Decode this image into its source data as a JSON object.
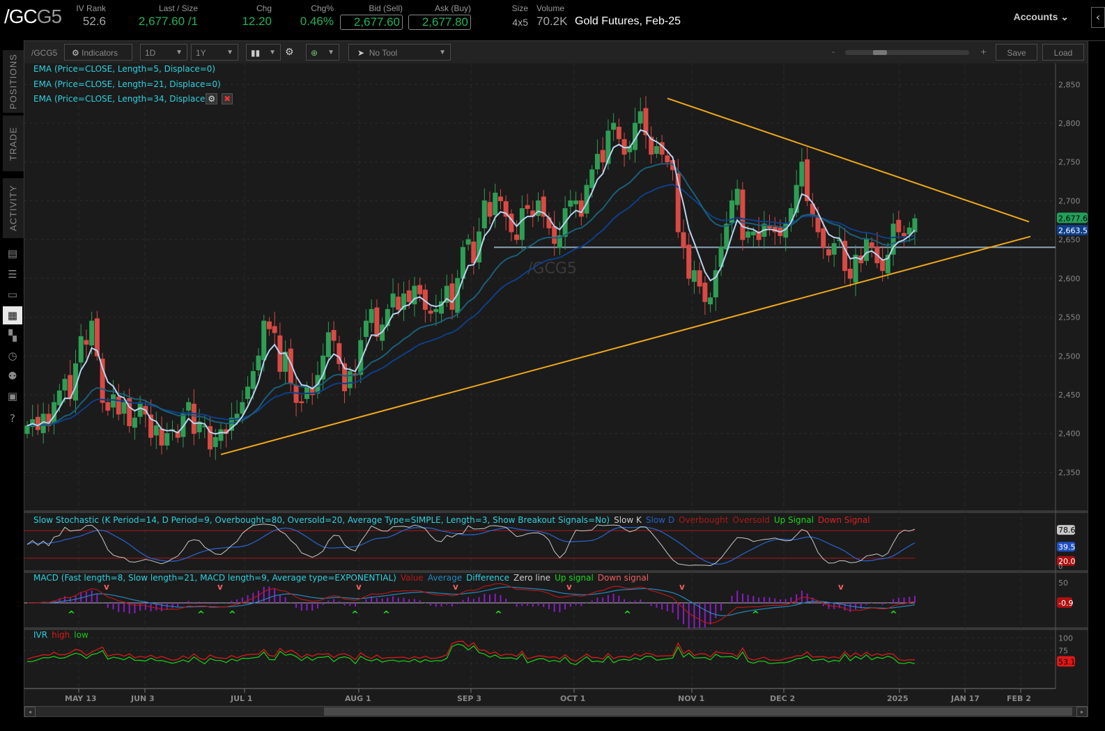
{
  "header": {
    "symbol_main": "/GC",
    "symbol_suffix": "G5",
    "iv_rank": {
      "label": "IV Rank",
      "value": "52.6"
    },
    "last_size": {
      "label": "Last / Size",
      "value": "2,677.60",
      "size": "/1"
    },
    "chg": {
      "label": "Chg",
      "value": "12.20"
    },
    "chg_pct": {
      "label": "Chg%",
      "value": "0.46%"
    },
    "bid": {
      "label": "Bid (Sell)",
      "value": "2,677.60"
    },
    "ask": {
      "label": "Ask (Buy)",
      "value": "2,677.80"
    },
    "size": {
      "label": "Size",
      "value": "4x5"
    },
    "volume": {
      "label": "Volume",
      "value": "70.2K"
    },
    "description": "Gold Futures, Feb-25",
    "accounts_label": "Accounts",
    "collapse_icon": "‹"
  },
  "left_rail": {
    "tabs": [
      "POSITIONS",
      "TRADE",
      "ACTIVITY"
    ],
    "icons": [
      "monitor-icon",
      "watchlist-icon",
      "tv-icon",
      "charts-icon",
      "grid-icon",
      "clock-icon",
      "people-icon",
      "calendar-icon",
      "help-icon"
    ]
  },
  "toolbar": {
    "symbol": "/GCG5",
    "indicators_label": "Indicators",
    "aggregation": "1D",
    "timeframe": "1Y",
    "style_icon": "candles-icon",
    "drawing_icon": "crosshair-icon",
    "tool_label": "No Tool",
    "zoom_minus": "-",
    "zoom_plus": "+",
    "save_label": "Save",
    "load_label": "Load"
  },
  "studies": {
    "ema5": "EMA (Price=CLOSE, Length=5, Displace=0)",
    "ema21": "EMA (Price=CLOSE, Length=21, Displace=0)",
    "ema34": "EMA (Price=CLOSE, Length=34, Displace",
    "watermark": "/GCG5",
    "stoch_title": "Slow Stochastic (K Period=14, D Period=9, Overbought=80, Oversold=20, Average Type=SIMPLE, Length=3, Show Breakout Signals=No)",
    "stoch_legend": [
      "Slow K",
      "Slow D",
      "Overbought",
      "Oversold",
      "Up Signal",
      "Down Signal"
    ],
    "macd_title": "MACD (Fast length=8, Slow length=21, MACD length=9, Average type=EXPONENTIAL)",
    "macd_legend": [
      "Value",
      "Average",
      "Difference",
      "Zero line",
      "Up signal",
      "Down signal"
    ],
    "ivr_title": "IVR",
    "ivr_legend": [
      "high",
      "low"
    ]
  },
  "colors": {
    "up": "#2e9e55",
    "down": "#d94a45",
    "ema5": "#b8d4f0",
    "ema21": "#1a5f7a",
    "ema34": "#0e3f8a",
    "trendline": "#f0a81c",
    "support": "#8aa5b8",
    "stoch_k": "#c8c8c8",
    "stoch_d": "#2860c8",
    "ob_os": "#b01818",
    "macd_value": "#b81818",
    "macd_avg": "#2388c0",
    "macd_hist": "#8a1cc8",
    "ivr_high": "#e01818",
    "ivr_low": "#18c818"
  },
  "chart_data": {
    "type": "candlestick",
    "title": "/GCG5 Gold Futures, Feb-25 — 1Y, 1D",
    "x_ticks": [
      "MAY 13",
      "JUN 3",
      "JUL 1",
      "AUG 1",
      "SEP 3",
      "OCT 1",
      "NOV 1",
      "DEC 2",
      "2025",
      "JAN 17",
      "FEB 2"
    ],
    "y_ticks": [
      2350,
      2400,
      2450,
      2500,
      2550,
      2600,
      2650,
      2700,
      2750,
      2800,
      2850
    ],
    "ylim": [
      2310,
      2870
    ],
    "last_price": "2,677.6",
    "ema_label": "2,663.5",
    "support_level": 2640,
    "trendlines": [
      {
        "name": "upper",
        "from": [
          "2024-10-30",
          2832
        ],
        "to": [
          "2025-02-05",
          2673
        ]
      },
      {
        "name": "lower",
        "from": [
          "2024-06-26",
          2373
        ],
        "to": [
          "2025-02-06",
          2654
        ]
      }
    ],
    "closes": [
      2410,
      2418,
      2405,
      2425,
      2410,
      2440,
      2455,
      2470,
      2445,
      2490,
      2525,
      2515,
      2545,
      2500,
      2440,
      2430,
      2450,
      2425,
      2440,
      2410,
      2420,
      2440,
      2425,
      2395,
      2410,
      2385,
      2400,
      2405,
      2395,
      2425,
      2440,
      2400,
      2415,
      2410,
      2380,
      2395,
      2405,
      2400,
      2420,
      2425,
      2440,
      2460,
      2480,
      2500,
      2545,
      2535,
      2530,
      2480,
      2505,
      2465,
      2440,
      2440,
      2460,
      2450,
      2475,
      2500,
      2530,
      2520,
      2490,
      2455,
      2480,
      2475,
      2520,
      2545,
      2560,
      2525,
      2540,
      2560,
      2580,
      2560,
      2580,
      2570,
      2590,
      2580,
      2560,
      2555,
      2560,
      2570,
      2590,
      2560,
      2600,
      2640,
      2650,
      2620,
      2660,
      2700,
      2680,
      2710,
      2700,
      2680,
      2660,
      2650,
      2690,
      2690,
      2680,
      2700,
      2680,
      2665,
      2645,
      2655,
      2690,
      2700,
      2700,
      2680,
      2720,
      2740,
      2760,
      2750,
      2790,
      2800,
      2780,
      2760,
      2770,
      2800,
      2815,
      2785,
      2760,
      2770,
      2760,
      2750,
      2740,
      2660,
      2640,
      2600,
      2610,
      2590,
      2570,
      2575,
      2610,
      2640,
      2670,
      2700,
      2715,
      2650,
      2660,
      2660,
      2650,
      2670,
      2665,
      2660,
      2655,
      2670,
      2690,
      2720,
      2750,
      2700,
      2680,
      2660,
      2640,
      2630,
      2645,
      2650,
      2610,
      2600,
      2630,
      2620,
      2650,
      2640,
      2620,
      2610,
      2630,
      2670,
      2660,
      2655,
      2665,
      2677
    ],
    "stochastic": {
      "ylim": [
        0,
        100
      ],
      "overbought": 80,
      "oversold": 20,
      "last_k": 78.6,
      "last_d": 39.5,
      "oversold_label": 20.0
    },
    "macd": {
      "ylim": [
        -75,
        75
      ],
      "ticks": [
        50
      ],
      "last_value": -0.9
    },
    "ivr": {
      "ylim": [
        0,
        110
      ],
      "ticks": [
        75,
        100
      ],
      "last": 53.1
    }
  }
}
